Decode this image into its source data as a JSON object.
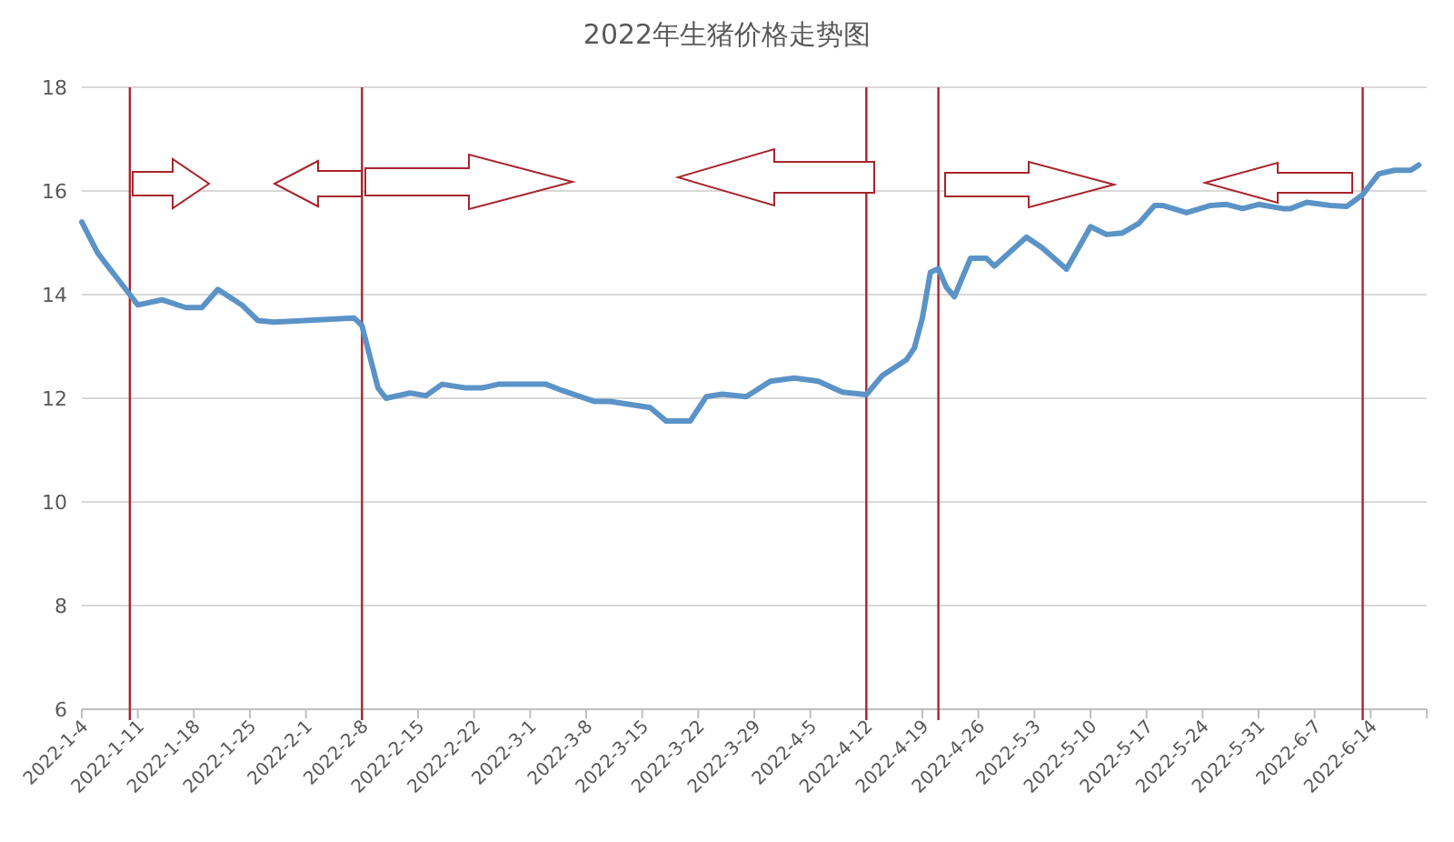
{
  "chart_data": {
    "type": "line",
    "title": "2022年生猪价格走势图",
    "x": [
      "2022-01-04",
      "2022-01-05",
      "2022-01-06",
      "2022-01-07",
      "2022-01-10",
      "2022-01-11",
      "2022-01-14",
      "2022-01-17",
      "2022-01-19",
      "2022-01-21",
      "2022-01-24",
      "2022-01-26",
      "2022-01-28",
      "2022-02-07",
      "2022-02-08",
      "2022-02-09",
      "2022-02-10",
      "2022-02-11",
      "2022-02-14",
      "2022-02-16",
      "2022-02-18",
      "2022-02-21",
      "2022-02-23",
      "2022-02-25",
      "2022-03-03",
      "2022-03-05",
      "2022-03-09",
      "2022-03-11",
      "2022-03-16",
      "2022-03-18",
      "2022-03-21",
      "2022-03-23",
      "2022-03-25",
      "2022-03-28",
      "2022-03-31",
      "2022-04-03",
      "2022-04-06",
      "2022-04-09",
      "2022-04-12",
      "2022-04-14",
      "2022-04-17",
      "2022-04-18",
      "2022-04-19",
      "2022-04-20",
      "2022-04-21",
      "2022-04-22",
      "2022-04-23",
      "2022-04-25",
      "2022-04-27",
      "2022-04-28",
      "2022-05-02",
      "2022-05-04",
      "2022-05-07",
      "2022-05-10",
      "2022-05-12",
      "2022-05-14",
      "2022-05-16",
      "2022-05-18",
      "2022-05-19",
      "2022-05-22",
      "2022-05-25",
      "2022-05-27",
      "2022-05-29",
      "2022-05-31",
      "2022-06-03",
      "2022-06-04",
      "2022-06-06",
      "2022-06-09",
      "2022-06-11",
      "2022-06-13",
      "2022-06-15",
      "2022-06-17",
      "2022-06-19",
      "2022-06-20"
    ],
    "series": [
      {
        "color": "#5b93c7",
        "values": [
          15.4,
          15.1,
          14.8,
          14.6,
          14.0,
          13.8,
          13.9,
          13.75,
          13.75,
          14.1,
          13.8,
          13.5,
          13.47,
          13.55,
          13.4,
          12.8,
          12.2,
          12.0,
          12.1,
          12.05,
          12.27,
          12.2,
          12.2,
          12.27,
          12.27,
          12.15,
          11.94,
          11.94,
          11.82,
          11.56,
          11.56,
          12.03,
          12.08,
          12.03,
          12.33,
          12.39,
          12.33,
          12.12,
          12.07,
          12.44,
          12.74,
          12.97,
          13.55,
          14.43,
          14.5,
          14.14,
          13.96,
          14.7,
          14.7,
          14.55,
          15.11,
          14.9,
          14.49,
          15.31,
          15.16,
          15.19,
          15.37,
          15.72,
          15.72,
          15.58,
          15.72,
          15.74,
          15.66,
          15.74,
          15.66,
          15.66,
          15.78,
          15.72,
          15.7,
          15.93,
          16.33,
          16.4,
          16.4,
          16.5
        ]
      }
    ],
    "xlim": [
      "2022-01-04",
      "2022-06-21"
    ],
    "xticks": [
      {
        "value": "2022-01-04",
        "label": "2022-1-4"
      },
      {
        "value": "2022-01-11",
        "label": "2022-1-11"
      },
      {
        "value": "2022-01-18",
        "label": "2022-1-18"
      },
      {
        "value": "2022-01-25",
        "label": "2022-1-25"
      },
      {
        "value": "2022-02-01",
        "label": "2022-2-1"
      },
      {
        "value": "2022-02-08",
        "label": "2022-2-8"
      },
      {
        "value": "2022-02-15",
        "label": "2022-2-15"
      },
      {
        "value": "2022-02-22",
        "label": "2022-2-22"
      },
      {
        "value": "2022-03-01",
        "label": "2022-3-1"
      },
      {
        "value": "2022-03-08",
        "label": "2022-3-8"
      },
      {
        "value": "2022-03-15",
        "label": "2022-3-15"
      },
      {
        "value": "2022-03-22",
        "label": "2022-3-22"
      },
      {
        "value": "2022-03-29",
        "label": "2022-3-29"
      },
      {
        "value": "2022-04-05",
        "label": "2022-4-5"
      },
      {
        "value": "2022-04-12",
        "label": "2022-4-12"
      },
      {
        "value": "2022-04-19",
        "label": "2022-4-19"
      },
      {
        "value": "2022-04-26",
        "label": "2022-4-26"
      },
      {
        "value": "2022-05-03",
        "label": "2022-5-3"
      },
      {
        "value": "2022-05-10",
        "label": "2022-5-10"
      },
      {
        "value": "2022-05-17",
        "label": "2022-5-17"
      },
      {
        "value": "2022-05-24",
        "label": "2022-5-24"
      },
      {
        "value": "2022-05-31",
        "label": "2022-5-31"
      },
      {
        "value": "2022-06-07",
        "label": "2022-6-7"
      },
      {
        "value": "2022-06-14",
        "label": "2022-6-14"
      },
      {
        "value": "2022-06-21",
        "label": null
      }
    ],
    "ylim": [
      6,
      18
    ],
    "yticks": [
      6,
      8,
      10,
      12,
      14,
      16,
      18
    ],
    "grid": "y",
    "line_style": "solid",
    "marker": "none",
    "ref_lines": [
      {
        "axis": "x",
        "value": "2022-01-10",
        "color": "#a8242c"
      },
      {
        "axis": "x",
        "value": "2022-02-08",
        "color": "#a8242c"
      },
      {
        "axis": "x",
        "value": "2022-04-12",
        "color": "#a8242c"
      },
      {
        "axis": "x",
        "value": "2022-04-21",
        "color": "#a8242c"
      },
      {
        "axis": "x",
        "value": "2022-06-13",
        "color": "#a8242c"
      }
    ]
  }
}
